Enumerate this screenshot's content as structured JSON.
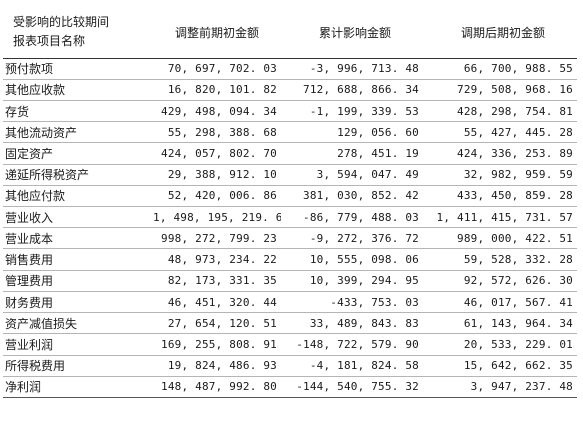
{
  "header": {
    "item_col_line1": "受影响的比较期间",
    "item_col_line2": "报表项目名称",
    "col_before": "调整前期初金额",
    "col_impact": "累计影响金额",
    "col_after": "调期后期初金额"
  },
  "rows": [
    {
      "item": "预付款项",
      "before": "70, 697, 702. 03",
      "impact": "-3, 996, 713. 48",
      "after": "66, 700, 988. 55"
    },
    {
      "item": "其他应收款",
      "before": "16, 820, 101. 82",
      "impact": "712, 688, 866. 34",
      "after": "729, 508, 968. 16"
    },
    {
      "item": "存货",
      "before": "429, 498, 094. 34",
      "impact": "-1, 199, 339. 53",
      "after": "428, 298, 754. 81"
    },
    {
      "item": "其他流动资产",
      "before": "55, 298, 388. 68",
      "impact": "129, 056. 60",
      "after": "55, 427, 445. 28"
    },
    {
      "item": "固定资产",
      "before": "424, 057, 802. 70",
      "impact": "278, 451. 19",
      "after": "424, 336, 253. 89"
    },
    {
      "item": "递延所得税资产",
      "before": "29, 388, 912. 10",
      "impact": "3, 594, 047. 49",
      "after": "32, 982, 959. 59"
    },
    {
      "item": "其他应付款",
      "before": "52, 420, 006. 86",
      "impact": "381, 030, 852. 42",
      "after": "433, 450, 859. 28"
    },
    {
      "item": "营业收入",
      "before": "1, 498, 195, 219. 60",
      "impact": "-86, 779, 488. 03",
      "after": "1, 411, 415, 731. 57"
    },
    {
      "item": "营业成本",
      "before": "998, 272, 799. 23",
      "impact": "-9, 272, 376. 72",
      "after": "989, 000, 422. 51"
    },
    {
      "item": "销售费用",
      "before": "48, 973, 234. 22",
      "impact": "10, 555, 098. 06",
      "after": "59, 528, 332. 28"
    },
    {
      "item": "管理费用",
      "before": "82, 173, 331. 35",
      "impact": "10, 399, 294. 95",
      "after": "92, 572, 626. 30"
    },
    {
      "item": "财务费用",
      "before": "46, 451, 320. 44",
      "impact": "-433, 753. 03",
      "after": "46, 017, 567. 41"
    },
    {
      "item": "资产减值损失",
      "before": "27, 654, 120. 51",
      "impact": "33, 489, 843. 83",
      "after": "61, 143, 964. 34"
    },
    {
      "item": "营业利润",
      "before": "169, 255, 808. 91",
      "impact": "-148, 722, 579. 90",
      "after": "20, 533, 229. 01"
    },
    {
      "item": "所得税费用",
      "before": "19, 824, 486. 93",
      "impact": "-4, 181, 824. 58",
      "after": "15, 642, 662. 35"
    },
    {
      "item": "净利润",
      "before": "148, 487, 992. 80",
      "impact": "-144, 540, 755. 32",
      "after": "3, 947, 237. 48"
    }
  ]
}
